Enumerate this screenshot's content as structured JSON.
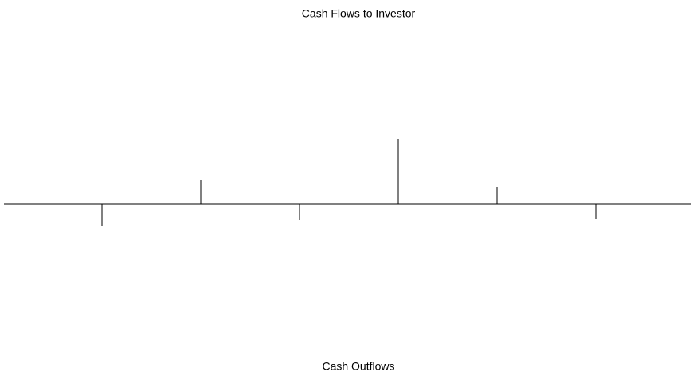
{
  "chart_data": {
    "type": "cashflow",
    "title": "Cash Flows to Investor",
    "bottom_label": "Cash Outflows",
    "values": [
      -28,
      30,
      -20,
      82,
      21,
      -19
    ],
    "color": "#000000"
  }
}
